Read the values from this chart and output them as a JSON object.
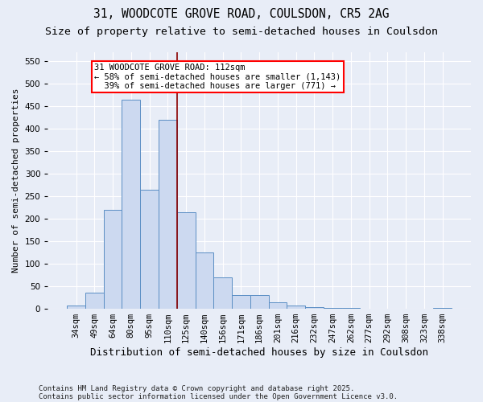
{
  "title1": "31, WOODCOTE GROVE ROAD, COULSDON, CR5 2AG",
  "title2": "Size of property relative to semi-detached houses in Coulsdon",
  "xlabel": "Distribution of semi-detached houses by size in Coulsdon",
  "ylabel": "Number of semi-detached properties",
  "categories": [
    "34sqm",
    "49sqm",
    "64sqm",
    "80sqm",
    "95sqm",
    "110sqm",
    "125sqm",
    "140sqm",
    "156sqm",
    "171sqm",
    "186sqm",
    "201sqm",
    "216sqm",
    "232sqm",
    "247sqm",
    "262sqm",
    "277sqm",
    "292sqm",
    "308sqm",
    "323sqm",
    "338sqm"
  ],
  "values": [
    8,
    35,
    220,
    465,
    265,
    420,
    215,
    125,
    70,
    30,
    30,
    15,
    8,
    4,
    2,
    2,
    1,
    1,
    1,
    1,
    2
  ],
  "bar_color": "#ccd9f0",
  "bar_edge_color": "#5b8ec4",
  "bar_edge_width": 0.7,
  "red_line_index": 5.5,
  "annotation_line1": "31 WOODCOTE GROVE ROAD: 112sqm",
  "annotation_line2": "← 58% of semi-detached houses are smaller (1,143)",
  "annotation_line3": "  39% of semi-detached houses are larger (771) →",
  "annotation_box_color": "white",
  "annotation_box_edge_color": "red",
  "ylim": [
    0,
    570
  ],
  "yticks": [
    0,
    50,
    100,
    150,
    200,
    250,
    300,
    350,
    400,
    450,
    500,
    550
  ],
  "background_color": "#e8edf7",
  "footer1": "Contains HM Land Registry data © Crown copyright and database right 2025.",
  "footer2": "Contains public sector information licensed under the Open Government Licence v3.0.",
  "title_fontsize": 10.5,
  "subtitle_fontsize": 9.5,
  "ylabel_fontsize": 8,
  "xlabel_fontsize": 9,
  "tick_fontsize": 7.5,
  "footer_fontsize": 6.5,
  "annot_fontsize": 7.5
}
